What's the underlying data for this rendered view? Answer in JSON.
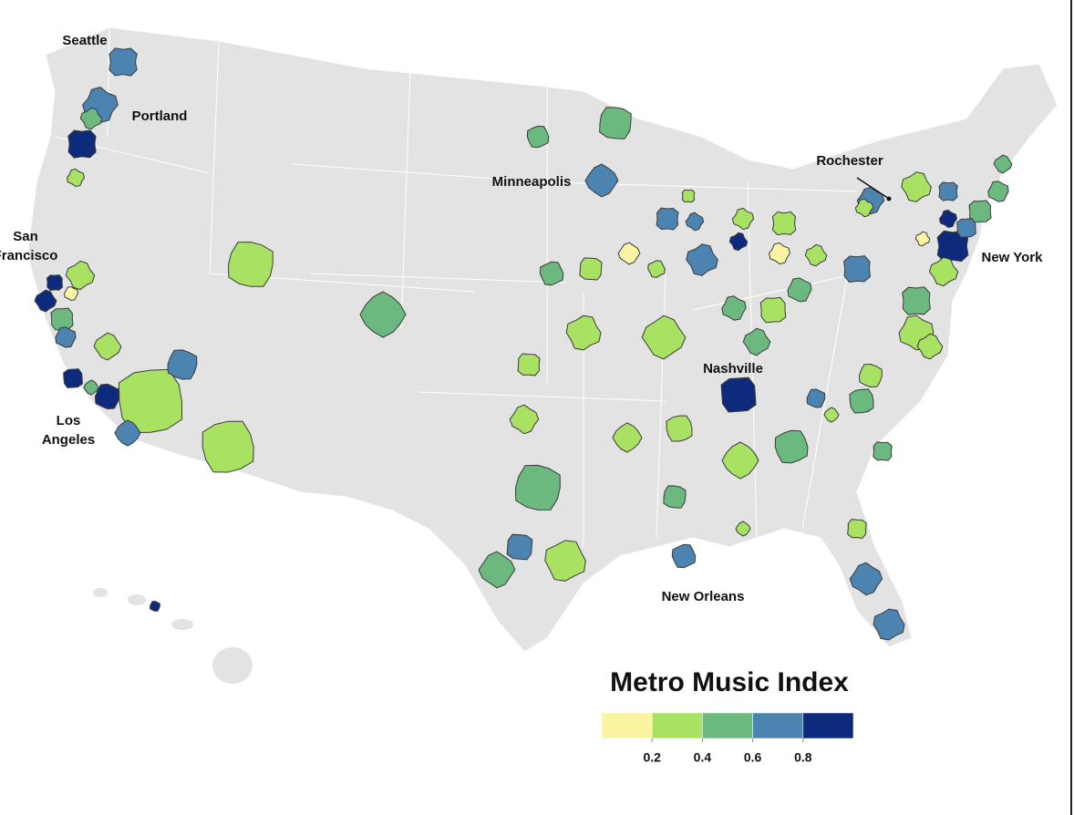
{
  "map": {
    "labels": [
      {
        "lines": [
          "Seattle"
        ]
      },
      {
        "lines": [
          "Portland"
        ]
      },
      {
        "lines": [
          "San",
          "Francisco"
        ]
      },
      {
        "lines": [
          "Los",
          "Angeles"
        ]
      },
      {
        "lines": [
          "Minneapolis"
        ]
      },
      {
        "lines": [
          "Rochester"
        ]
      },
      {
        "lines": [
          "New York"
        ]
      },
      {
        "lines": [
          "Nashville"
        ]
      },
      {
        "lines": [
          "New Orleans"
        ]
      }
    ],
    "legend": {
      "title": "Metro Music Index",
      "colors": [
        "#fbf5a3",
        "#a9e262",
        "#6cb97f",
        "#4b83b1",
        "#0d2a7c"
      ],
      "ticks": [
        0.2,
        0.4,
        0.6,
        0.8
      ]
    }
  }
}
